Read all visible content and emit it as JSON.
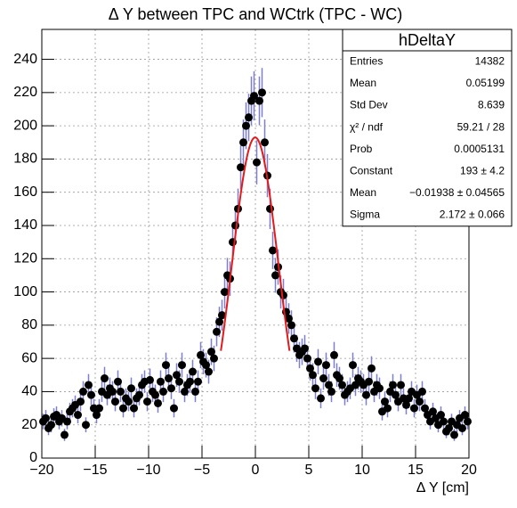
{
  "chart_data": {
    "type": "errorbar",
    "title": "Δ Y between TPC and WCtrk (TPC - WC)",
    "x_label": "Δ Y [cm]",
    "x": [
      -19.875,
      -19.625,
      -19.375,
      -19.125,
      -18.875,
      -18.625,
      -18.375,
      -18.125,
      -17.875,
      -17.625,
      -17.375,
      -17.125,
      -16.875,
      -16.625,
      -16.375,
      -16.125,
      -15.875,
      -15.625,
      -15.375,
      -15.125,
      -14.875,
      -14.625,
      -14.375,
      -14.125,
      -13.875,
      -13.625,
      -13.375,
      -13.125,
      -12.875,
      -12.625,
      -12.375,
      -12.125,
      -11.875,
      -11.625,
      -11.375,
      -11.125,
      -10.875,
      -10.625,
      -10.375,
      -10.125,
      -9.875,
      -9.625,
      -9.375,
      -9.125,
      -8.875,
      -8.625,
      -8.375,
      -8.125,
      -7.875,
      -7.625,
      -7.375,
      -7.125,
      -6.875,
      -6.625,
      -6.375,
      -6.125,
      -5.875,
      -5.625,
      -5.375,
      -5.125,
      -4.875,
      -4.625,
      -4.375,
      -4.125,
      -3.875,
      -3.625,
      -3.375,
      -3.125,
      -2.875,
      -2.625,
      -2.375,
      -2.125,
      -1.875,
      -1.625,
      -1.375,
      -1.125,
      -0.875,
      -0.625,
      -0.375,
      -0.125,
      0.125,
      0.375,
      0.625,
      0.875,
      1.125,
      1.375,
      1.625,
      1.875,
      2.125,
      2.375,
      2.625,
      2.875,
      3.125,
      3.375,
      3.625,
      3.875,
      4.125,
      4.375,
      4.625,
      4.875,
      5.125,
      5.375,
      5.625,
      5.875,
      6.125,
      6.375,
      6.625,
      6.875,
      7.125,
      7.375,
      7.625,
      7.875,
      8.125,
      8.375,
      8.625,
      8.875,
      9.125,
      9.375,
      9.625,
      9.875,
      10.125,
      10.375,
      10.625,
      10.875,
      11.125,
      11.375,
      11.625,
      11.875,
      12.125,
      12.375,
      12.625,
      12.875,
      13.125,
      13.375,
      13.625,
      13.875,
      14.125,
      14.375,
      14.625,
      14.875,
      15.125,
      15.375,
      15.625,
      15.875,
      16.125,
      16.375,
      16.625,
      16.875,
      17.125,
      17.375,
      17.625,
      17.875,
      18.125,
      18.375,
      18.625,
      18.875,
      19.125,
      19.375,
      19.625,
      19.875
    ],
    "values": [
      22,
      24,
      18,
      20,
      25,
      26,
      22,
      24,
      14,
      22,
      28,
      30,
      32,
      26,
      34,
      40,
      20,
      44,
      38,
      30,
      26,
      30,
      40,
      48,
      38,
      42,
      40,
      34,
      46,
      40,
      30,
      36,
      34,
      42,
      30,
      36,
      38,
      44,
      46,
      34,
      47,
      40,
      38,
      33,
      46,
      40,
      56,
      48,
      42,
      30,
      50,
      46,
      56,
      40,
      44,
      46,
      52,
      40,
      46,
      62,
      58,
      56,
      52,
      64,
      60,
      76,
      82,
      86,
      100,
      110,
      108,
      130,
      140,
      150,
      175,
      190,
      200,
      205,
      215,
      218,
      178,
      215,
      220,
      190,
      170,
      150,
      125,
      110,
      115,
      100,
      98,
      88,
      84,
      80,
      72,
      66,
      62,
      64,
      66,
      60,
      54,
      50,
      42,
      58,
      36,
      48,
      56,
      44,
      40,
      62,
      50,
      48,
      44,
      38,
      40,
      42,
      56,
      44,
      48,
      46,
      44,
      38,
      46,
      54,
      40,
      44,
      42,
      28,
      34,
      30,
      40,
      44,
      38,
      34,
      44,
      36,
      32,
      36,
      40,
      30,
      38,
      34,
      40,
      30,
      26,
      22,
      28,
      24,
      20,
      26,
      22,
      16,
      18,
      22,
      14,
      20,
      24,
      18,
      26,
      22
    ],
    "errors": [
      4.7,
      4.9,
      4.2,
      4.5,
      5,
      5.1,
      4.7,
      4.9,
      3.7,
      4.7,
      5.3,
      5.5,
      5.7,
      5.1,
      5.8,
      6.3,
      4.5,
      6.6,
      6.2,
      5.5,
      5.1,
      5.5,
      6.3,
      6.9,
      6.2,
      6.5,
      6.3,
      5.8,
      6.8,
      6.3,
      5.5,
      6,
      5.8,
      6.5,
      5.5,
      6,
      6.2,
      6.6,
      6.8,
      5.8,
      6.9,
      6.3,
      6.2,
      5.7,
      6.8,
      6.3,
      7.5,
      6.9,
      6.5,
      5.5,
      7.1,
      6.8,
      7.5,
      6.3,
      6.6,
      6.8,
      7.2,
      6.3,
      6.8,
      7.9,
      7.6,
      7.5,
      7.2,
      8,
      7.7,
      8.7,
      9.1,
      9.3,
      10,
      10.5,
      10.4,
      11.4,
      11.8,
      12.2,
      13.2,
      13.8,
      14.1,
      14.3,
      14.7,
      14.8,
      13.3,
      14.7,
      14.8,
      13.8,
      13,
      12.2,
      11.2,
      10.5,
      10.7,
      10,
      9.9,
      9.4,
      9.2,
      8.9,
      8.5,
      8.1,
      7.9,
      8,
      8.1,
      7.7,
      7.3,
      7.1,
      6.5,
      7.6,
      6,
      6.9,
      7.5,
      6.6,
      6.3,
      7.9,
      7.1,
      6.9,
      6.6,
      6.2,
      6.3,
      6.5,
      7.5,
      6.6,
      6.9,
      6.8,
      6.6,
      6.2,
      6.8,
      7.3,
      6.3,
      6.6,
      6.5,
      5.3,
      5.8,
      5.5,
      6.3,
      6.6,
      6.2,
      5.8,
      6.6,
      6,
      5.7,
      6,
      6.3,
      5.5,
      6.2,
      5.8,
      6.3,
      5.5,
      5.1,
      4.7,
      5.3,
      4.9,
      4.5,
      5.1,
      4.7,
      4,
      4.2,
      4.7,
      3.7,
      4.5,
      4.9,
      4.2,
      5.1,
      4.7
    ],
    "color": "#000000",
    "error_color": "#7f7fc8",
    "fit": {
      "constant": 193,
      "mean": -0.01938,
      "sigma": 2.172,
      "color": "#e31a1c"
    },
    "xlim": [
      -20,
      20
    ],
    "ylim": [
      0,
      258
    ],
    "xticks": [
      {
        "value": -20,
        "label": "−20"
      },
      {
        "value": -15,
        "label": "−15"
      },
      {
        "value": -10,
        "label": "−10"
      },
      {
        "value": -5,
        "label": "−5"
      },
      0,
      5,
      10,
      15,
      20
    ],
    "yticks": [
      0,
      20,
      40,
      60,
      80,
      100,
      120,
      140,
      160,
      180,
      200,
      220,
      240
    ],
    "grid": true,
    "stats": {
      "title": "hDeltaY",
      "rows": [
        {
          "name": "Entries",
          "text": "14382"
        },
        {
          "name": "Mean",
          "text": "0.05199"
        },
        {
          "name": "Std Dev",
          "text": "8.639"
        },
        {
          "name": "χ² / ndf",
          "text": "59.21 / 28"
        },
        {
          "name": "Prob",
          "text": "0.0005131"
        },
        {
          "name": "Constant",
          "text": "193 ± 4.2"
        },
        {
          "name": "Mean",
          "text": "−0.01938 ± 0.04565"
        },
        {
          "name": "Sigma",
          "text": "2.172 ± 0.066"
        }
      ]
    }
  }
}
